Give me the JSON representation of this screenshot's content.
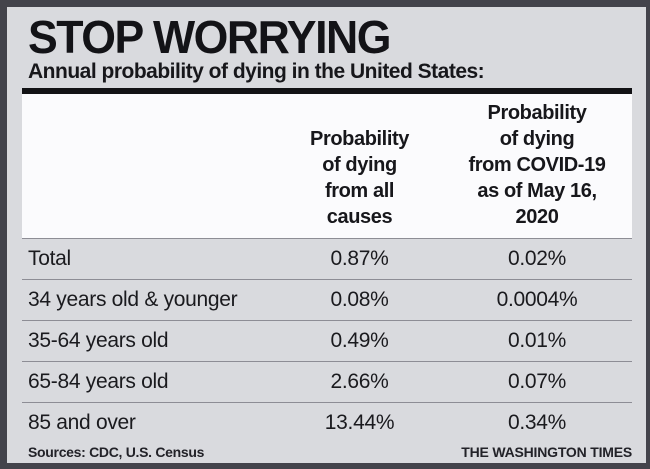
{
  "colors": {
    "frame_border": "#43434b",
    "panel_background": "#d9dade",
    "header_block_background": "#fbfbfd",
    "divider_black": "#121215",
    "row_separator": "#8d8d95",
    "text": "#17171b"
  },
  "header": {
    "title": "STOP WORRYING",
    "subtitle": "Annual probability of dying in the United States:"
  },
  "table": {
    "col2_header": "Probability\nof dying\nfrom all\ncauses",
    "col3_header": "Probability\nof dying\nfrom COVID-19\nas of May 16,\n2020",
    "rows": [
      {
        "label": "Total",
        "all_causes": "0.87%",
        "covid": "0.02%"
      },
      {
        "label": "34 years old & younger",
        "all_causes": "0.08%",
        "covid": "0.0004%"
      },
      {
        "label": "35-64 years old",
        "all_causes": "0.49%",
        "covid": "0.01%"
      },
      {
        "label": "65-84 years old",
        "all_causes": "2.66%",
        "covid": "0.07%"
      },
      {
        "label": "85 and over",
        "all_causes": "13.44%",
        "covid": "0.34%"
      }
    ]
  },
  "footer": {
    "sources": "Sources: CDC, U.S. Census",
    "credit": "THE WASHINGTON TIMES"
  },
  "chart_data": {
    "type": "table",
    "title": "STOP WORRYING",
    "subtitle": "Annual probability of dying in the United States:",
    "categories": [
      "Total",
      "34 years old & younger",
      "35-64 years old",
      "65-84 years old",
      "85 and over"
    ],
    "series": [
      {
        "name": "Probability of dying from all causes",
        "values_percent": [
          0.87,
          0.08,
          0.49,
          2.66,
          13.44
        ],
        "values_label": [
          "0.87%",
          "0.08%",
          "0.49%",
          "2.66%",
          "13.44%"
        ]
      },
      {
        "name": "Probability of dying from COVID-19 as of May 16, 2020",
        "values_percent": [
          0.02,
          0.0004,
          0.01,
          0.07,
          0.34
        ],
        "values_label": [
          "0.02%",
          "0.0004%",
          "0.01%",
          "0.07%",
          "0.34%"
        ]
      }
    ],
    "sources": "Sources: CDC, U.S. Census",
    "credit": "THE WASHINGTON TIMES"
  }
}
